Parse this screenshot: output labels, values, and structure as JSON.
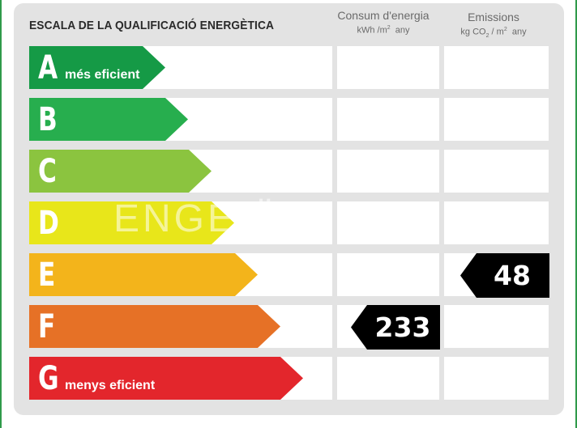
{
  "title": "ESCALA DE LA QUALIFICACIÓ ENERGÈTICA",
  "consum_header": {
    "line1": "Consum d'energia",
    "unit_main": "kWh /m",
    "unit_sup": "2",
    "unit_tail": "any"
  },
  "emissions_header": {
    "line1": "Emissions",
    "unit_a": "kg CO",
    "unit_sub": "2",
    "unit_b": "/ m",
    "unit_sup": "2",
    "unit_tail": "any"
  },
  "rows": [
    {
      "letter": "A",
      "sublabel": "més eficient",
      "color": "#159a46"
    },
    {
      "letter": "B",
      "sublabel": "",
      "color": "#27ae4e"
    },
    {
      "letter": "C",
      "sublabel": "",
      "color": "#8bc43f"
    },
    {
      "letter": "D",
      "sublabel": "",
      "color": "#e8e61a"
    },
    {
      "letter": "E",
      "sublabel": "",
      "color": "#f3b41b"
    },
    {
      "letter": "F",
      "sublabel": "",
      "color": "#e67126"
    },
    {
      "letter": "G",
      "sublabel": "menys eficient",
      "color": "#e3262c"
    }
  ],
  "consum_value": "233",
  "consum_rating": "F",
  "emissions_value": "48",
  "emissions_rating": "E",
  "watermark": "ENGE          Ü          S"
}
